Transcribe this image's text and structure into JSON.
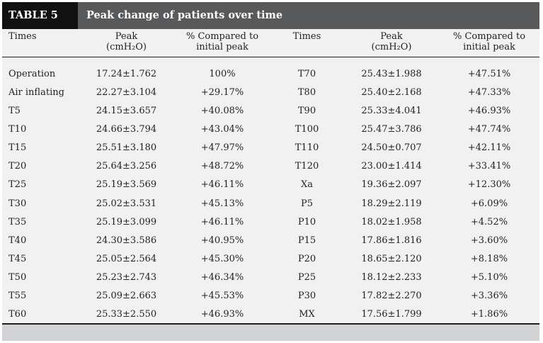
{
  "table": {
    "label": "TABLE 5",
    "title": "Peak change of patients over time",
    "headers": {
      "times": "Times",
      "peak_line1": "Peak",
      "peak_line2": "(cmH₂O)",
      "pct_line1": "% Compared to",
      "pct_line2": "initial peak"
    },
    "rows": [
      {
        "time1": "Operation",
        "peak1": "17.24±1.762",
        "pct1": "100%",
        "time2": "T70",
        "peak2": "25.43±1.988",
        "pct2": "+47.51%"
      },
      {
        "time1": "Air inflating",
        "peak1": "22.27±3.104",
        "pct1": "+29.17%",
        "time2": "T80",
        "peak2": "25.40±2.168",
        "pct2": "+47.33%"
      },
      {
        "time1": "T5",
        "peak1": "24.15±3.657",
        "pct1": "+40.08%",
        "time2": "T90",
        "peak2": "25.33±4.041",
        "pct2": "+46.93%"
      },
      {
        "time1": "T10",
        "peak1": "24.66±3.794",
        "pct1": "+43.04%",
        "time2": "T100",
        "peak2": "25.47±3.786",
        "pct2": "+47.74%"
      },
      {
        "time1": "T15",
        "peak1": "25.51±3.180",
        "pct1": "+47.97%",
        "time2": "T110",
        "peak2": "24.50±0.707",
        "pct2": "+42.11%"
      },
      {
        "time1": "T20",
        "peak1": "25.64±3.256",
        "pct1": "+48.72%",
        "time2": "T120",
        "peak2": "23.00±1.414",
        "pct2": "+33.41%"
      },
      {
        "time1": "T25",
        "peak1": "25.19±3.569",
        "pct1": "+46.11%",
        "time2": "Xa",
        "peak2": "19.36±2.097",
        "pct2": "+12.30%"
      },
      {
        "time1": "T30",
        "peak1": "25.02±3.531",
        "pct1": "+45.13%",
        "time2": "P5",
        "peak2": "18.29±2.119",
        "pct2": "+6.09%"
      },
      {
        "time1": "T35",
        "peak1": "25.19±3.099",
        "pct1": "+46.11%",
        "time2": "P10",
        "peak2": "18.02±1.958",
        "pct2": "+4.52%"
      },
      {
        "time1": "T40",
        "peak1": "24.30±3.586",
        "pct1": "+40.95%",
        "time2": "P15",
        "peak2": "17.86±1.816",
        "pct2": "+3.60%"
      },
      {
        "time1": "T45",
        "peak1": "25.05±2.564",
        "pct1": "+45.30%",
        "time2": "P20",
        "peak2": "18.65±2.120",
        "pct2": "+8.18%"
      },
      {
        "time1": "T50",
        "peak1": "25.23±2.743",
        "pct1": "+46.34%",
        "time2": "P25",
        "peak2": "18.12±2.233",
        "pct2": "+5.10%"
      },
      {
        "time1": "T55",
        "peak1": "25.09±2.663",
        "pct1": "+45.53%",
        "time2": "P30",
        "peak2": "17.82±2.270",
        "pct2": "+3.36%"
      },
      {
        "time1": "T60",
        "peak1": "25.33±2.550",
        "pct1": "+46.93%",
        "time2": "MX",
        "peak2": "17.56±1.799",
        "pct2": "+1.86%"
      }
    ]
  }
}
